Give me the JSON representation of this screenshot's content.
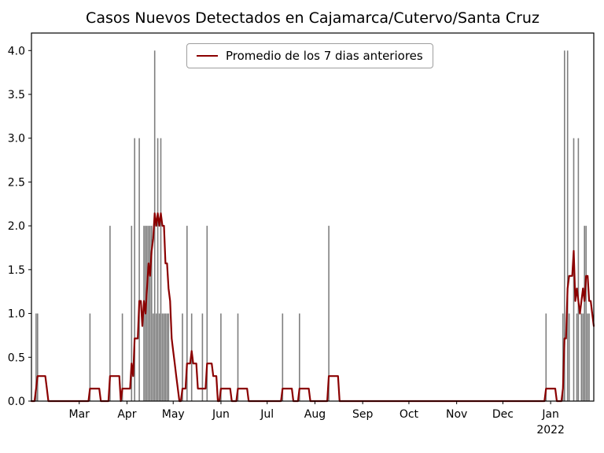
{
  "chart_data": {
    "type": "bar+line",
    "title": "Casos Nuevos Detectados en Cajamarca/Cutervo/Santa Cruz",
    "xlabel": "",
    "ylabel": "",
    "grid": false,
    "ylim": [
      0.0,
      4.2
    ],
    "yticks": [
      0.0,
      0.5,
      1.0,
      1.5,
      2.0,
      2.5,
      3.0,
      3.5,
      4.0
    ],
    "x_range": {
      "start": "2021-01-29",
      "end": "2022-01-29"
    },
    "xticks": [
      {
        "date": "2021-03-01",
        "label": "Mar"
      },
      {
        "date": "2021-04-01",
        "label": "Apr"
      },
      {
        "date": "2021-05-01",
        "label": "May"
      },
      {
        "date": "2021-06-01",
        "label": "Jun"
      },
      {
        "date": "2021-07-01",
        "label": "Jul"
      },
      {
        "date": "2021-08-01",
        "label": "Aug"
      },
      {
        "date": "2021-09-01",
        "label": "Sep"
      },
      {
        "date": "2021-10-01",
        "label": "Oct"
      },
      {
        "date": "2021-11-01",
        "label": "Nov"
      },
      {
        "date": "2021-12-01",
        "label": "Dec"
      },
      {
        "date": "2022-01-01",
        "label": "Jan",
        "sublabel": "2022"
      }
    ],
    "legend": {
      "position": "upper center",
      "entries": [
        "Promedio de los 7 dias anteriores"
      ]
    },
    "series": [
      {
        "name": "Casos nuevos diarios",
        "type": "bar",
        "color": "#7f7f7f",
        "in_legend": false
      },
      {
        "name": "Promedio de los 7 dias anteriores",
        "type": "line",
        "color": "#8b0000",
        "in_legend": true,
        "derivation": "rolling mean of previous 7 days of daily cases"
      }
    ],
    "daily_cases": [
      {
        "date": "2021-02-01",
        "cases": 1
      },
      {
        "date": "2021-02-02",
        "cases": 1
      },
      {
        "date": "2021-03-08",
        "cases": 1
      },
      {
        "date": "2021-03-21",
        "cases": 2
      },
      {
        "date": "2021-03-29",
        "cases": 1
      },
      {
        "date": "2021-04-04",
        "cases": 2
      },
      {
        "date": "2021-04-06",
        "cases": 3
      },
      {
        "date": "2021-04-09",
        "cases": 3
      },
      {
        "date": "2021-04-12",
        "cases": 2
      },
      {
        "date": "2021-04-13",
        "cases": 2
      },
      {
        "date": "2021-04-14",
        "cases": 2
      },
      {
        "date": "2021-04-15",
        "cases": 2
      },
      {
        "date": "2021-04-16",
        "cases": 2
      },
      {
        "date": "2021-04-17",
        "cases": 2
      },
      {
        "date": "2021-04-18",
        "cases": 1
      },
      {
        "date": "2021-04-19",
        "cases": 4
      },
      {
        "date": "2021-04-20",
        "cases": 1
      },
      {
        "date": "2021-04-21",
        "cases": 3
      },
      {
        "date": "2021-04-22",
        "cases": 1
      },
      {
        "date": "2021-04-23",
        "cases": 3
      },
      {
        "date": "2021-04-24",
        "cases": 1
      },
      {
        "date": "2021-04-25",
        "cases": 1
      },
      {
        "date": "2021-04-26",
        "cases": 1
      },
      {
        "date": "2021-04-27",
        "cases": 1
      },
      {
        "date": "2021-04-28",
        "cases": 1
      },
      {
        "date": "2021-05-07",
        "cases": 1
      },
      {
        "date": "2021-05-10",
        "cases": 2
      },
      {
        "date": "2021-05-13",
        "cases": 1
      },
      {
        "date": "2021-05-20",
        "cases": 1
      },
      {
        "date": "2021-05-23",
        "cases": 2
      },
      {
        "date": "2021-06-01",
        "cases": 1
      },
      {
        "date": "2021-06-12",
        "cases": 1
      },
      {
        "date": "2021-07-11",
        "cases": 1
      },
      {
        "date": "2021-07-22",
        "cases": 1
      },
      {
        "date": "2021-08-10",
        "cases": 2
      },
      {
        "date": "2021-12-29",
        "cases": 1
      },
      {
        "date": "2022-01-09",
        "cases": 1
      },
      {
        "date": "2022-01-10",
        "cases": 4
      },
      {
        "date": "2022-01-12",
        "cases": 4
      },
      {
        "date": "2022-01-13",
        "cases": 1
      },
      {
        "date": "2022-01-16",
        "cases": 3
      },
      {
        "date": "2022-01-18",
        "cases": 1
      },
      {
        "date": "2022-01-19",
        "cases": 3
      },
      {
        "date": "2022-01-21",
        "cases": 1
      },
      {
        "date": "2022-01-22",
        "cases": 1
      },
      {
        "date": "2022-01-23",
        "cases": 2
      },
      {
        "date": "2022-01-24",
        "cases": 2
      },
      {
        "date": "2022-01-25",
        "cases": 1
      },
      {
        "date": "2022-01-26",
        "cases": 1
      }
    ]
  }
}
